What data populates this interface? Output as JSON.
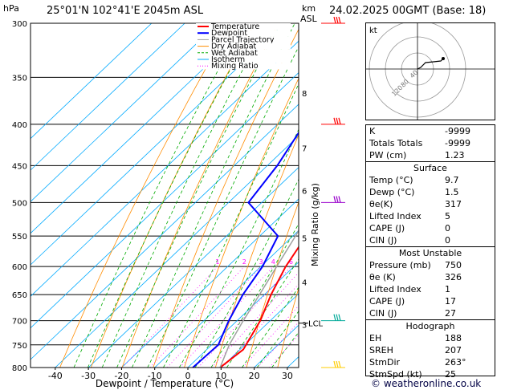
{
  "header": {
    "pressure_unit": "hPa",
    "location": "25°01'N 102°41'E 2045m ASL",
    "km_label": "km",
    "asl_label": "ASL",
    "datetime": "24.02.2025 00GMT (Base: 18)"
  },
  "footer": {
    "credit": "© weatheronline.co.uk"
  },
  "colors": {
    "temperature": "#ff0000",
    "dewpoint": "#0000ff",
    "parcel": "#a0a0a0",
    "dry_adiabat": "#ff8c00",
    "wet_adiabat": "#00aa00",
    "isotherm": "#00aaff",
    "mixing_ratio": "#ff00ff"
  },
  "chart_data": {
    "type": "line",
    "chart": "skew-T log-P",
    "xlabel": "Dewpoint / Temperature (°C)",
    "ylabel_right": "Mixing Ratio (g/kg)",
    "xlim": [
      -45,
      33
    ],
    "ylim": [
      800,
      300
    ],
    "pressure_ticks": [
      300,
      350,
      400,
      450,
      500,
      550,
      600,
      650,
      700,
      750,
      800
    ],
    "temperature_ticks": [
      -40,
      -30,
      -20,
      -10,
      0,
      10,
      20,
      30
    ],
    "height_km_ticks": [
      {
        "label": "8",
        "p": 366
      },
      {
        "label": "7",
        "p": 428
      },
      {
        "label": "6",
        "p": 483
      },
      {
        "label": "5",
        "p": 553
      },
      {
        "label": "4",
        "p": 627
      },
      {
        "label": "3",
        "p": 708
      }
    ],
    "lcl": {
      "label": "LCL",
      "p": 705
    },
    "mixing_ratio_labels": [
      "1",
      "2",
      "3",
      "4",
      "6",
      "8",
      "10",
      "15",
      "20",
      "25"
    ],
    "mixing_ratio_values": [
      1,
      2,
      3,
      4,
      6,
      8,
      10,
      15,
      20,
      25
    ],
    "legend": [
      "Temperature",
      "Dewpoint",
      "Parcel Trajectory",
      "Dry Adiabat",
      "Wet Adiabat",
      "Isotherm",
      "Mixing Ratio"
    ],
    "legend_position": "top-left",
    "series": [
      {
        "name": "Temperature",
        "points": [
          [
            800,
            9.7
          ],
          [
            760,
            11
          ],
          [
            700,
            7
          ],
          [
            650,
            2
          ],
          [
            600,
            -2.5
          ],
          [
            550,
            -6
          ],
          [
            500,
            -11
          ],
          [
            450,
            -15
          ],
          [
            400,
            -22
          ],
          [
            350,
            -29
          ],
          [
            300,
            -36
          ]
        ]
      },
      {
        "name": "Dewpoint",
        "points": [
          [
            800,
            1.5
          ],
          [
            750,
            2
          ],
          [
            700,
            -2.5
          ],
          [
            650,
            -6.5
          ],
          [
            600,
            -9.5
          ],
          [
            550,
            -14.5
          ],
          [
            500,
            -34
          ],
          [
            450,
            -37
          ],
          [
            400,
            -42
          ],
          [
            350,
            -53
          ],
          [
            300,
            -60
          ]
        ]
      },
      {
        "name": "Parcel Trajectory",
        "points": [
          [
            800,
            9.7
          ],
          [
            750,
            5.3
          ],
          [
            705,
            2.2
          ],
          [
            650,
            -1.5
          ],
          [
            600,
            -5.2
          ],
          [
            550,
            -9.2
          ],
          [
            500,
            -14
          ],
          [
            450,
            -19
          ],
          [
            400,
            -25.5
          ],
          [
            350,
            -33
          ],
          [
            300,
            -42
          ]
        ]
      }
    ],
    "wind_barbs": [
      {
        "p": 300,
        "color": "#ff0000"
      },
      {
        "p": 400,
        "color": "#ff0000"
      },
      {
        "p": 500,
        "color": "#9900cc"
      },
      {
        "p": 700,
        "color": "#00aa99"
      },
      {
        "p": 800,
        "color": "#ffcc00"
      }
    ]
  },
  "hodograph": {
    "unit_label": "kt",
    "ring_labels": [
      "40",
      "80",
      "120"
    ]
  },
  "indices": {
    "top": [
      {
        "label": "K",
        "value": "-9999"
      },
      {
        "label": "Totals Totals",
        "value": "-9999"
      },
      {
        "label": "PW (cm)",
        "value": "1.23"
      }
    ],
    "surface": {
      "title": "Surface",
      "rows": [
        {
          "label": "Temp (°C)",
          "value": "9.7"
        },
        {
          "label": "Dewp (°C)",
          "value": "1.5"
        },
        {
          "label": "θe(K)",
          "value": "317"
        },
        {
          "label": "Lifted Index",
          "value": "5"
        },
        {
          "label": "CAPE (J)",
          "value": "0"
        },
        {
          "label": "CIN (J)",
          "value": "0"
        }
      ]
    },
    "most_unstable": {
      "title": "Most Unstable",
      "rows": [
        {
          "label": "Pressure (mb)",
          "value": "750"
        },
        {
          "label": "θe (K)",
          "value": "326"
        },
        {
          "label": "Lifted Index",
          "value": "1"
        },
        {
          "label": "CAPE (J)",
          "value": "17"
        },
        {
          "label": "CIN (J)",
          "value": "27"
        }
      ]
    },
    "hodograph": {
      "title": "Hodograph",
      "rows": [
        {
          "label": "EH",
          "value": "188"
        },
        {
          "label": "SREH",
          "value": "207"
        },
        {
          "label": "StmDir",
          "value": "263°"
        },
        {
          "label": "StmSpd (kt)",
          "value": "25"
        }
      ]
    }
  }
}
